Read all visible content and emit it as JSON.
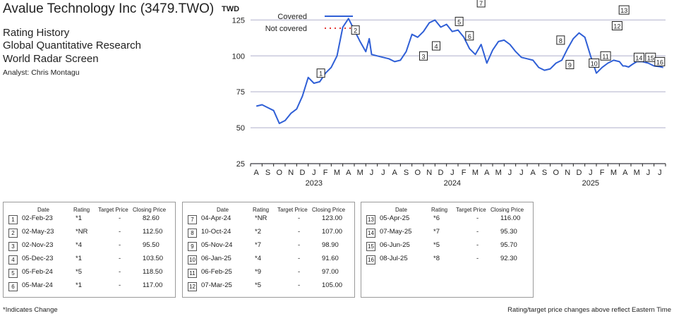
{
  "header": {
    "company": "Avalue Technology Inc (3479.TWO)",
    "line1": "Rating History",
    "line2": "Global Quantitative Research",
    "line3": "World Radar Screen",
    "analyst": "Analyst: Chris Montagu"
  },
  "colors": {
    "covered": "#2f5fd6",
    "not_covered": "#e53935",
    "grid": "#c9c9dc",
    "axis": "#222222"
  },
  "chart_data": {
    "type": "line",
    "ylabel": "TWD",
    "ylim": [
      25,
      135
    ],
    "yticks": [
      25,
      50,
      75,
      100,
      125
    ],
    "grid": "horizontal",
    "legend": {
      "placement": "top",
      "entries": [
        "Covered",
        "Not covered"
      ]
    },
    "months": [
      "A",
      "S",
      "O",
      "N",
      "D",
      "J",
      "F",
      "M",
      "A",
      "M",
      "J",
      "J",
      "A",
      "S",
      "O",
      "N",
      "D",
      "J",
      "F",
      "M",
      "A",
      "M",
      "J",
      "J",
      "A",
      "S",
      "O",
      "N",
      "D",
      "J",
      "F",
      "M",
      "A",
      "M",
      "J",
      "J"
    ],
    "years": [
      {
        "label": "2023",
        "month_index": 5
      },
      {
        "label": "2024",
        "month_index": 17
      },
      {
        "label": "2025",
        "month_index": 29
      }
    ],
    "series": [
      {
        "name": "Covered",
        "x": [
          0,
          0.5,
          1,
          1.5,
          2,
          2.5,
          3,
          3.5,
          4,
          4.5,
          5,
          5.5,
          6,
          6.5,
          7,
          7.5,
          8,
          8.5,
          9,
          9.5,
          9.8,
          10,
          10.5,
          11,
          11.5,
          12,
          12.5,
          13,
          13.5,
          14,
          14.5,
          15,
          15.5,
          16,
          16.5,
          17,
          17.5,
          18,
          18.5,
          19,
          19.5,
          20,
          20.5,
          21,
          21.5,
          22,
          22.5,
          23,
          23.5,
          24,
          24.5,
          25,
          25.5,
          26,
          26.5,
          27,
          27.5,
          28,
          28.5,
          29,
          29.5,
          30,
          30.5,
          31,
          31.5,
          31.8,
          32,
          32.3,
          32.6,
          33,
          33.5,
          34,
          34.5,
          35,
          35.3
        ],
        "y": [
          65,
          66,
          64,
          62,
          53,
          55,
          60,
          63,
          72,
          85,
          81,
          82,
          88,
          92,
          100,
          120,
          126,
          118,
          110,
          103,
          112,
          101,
          100,
          99,
          98,
          96,
          97,
          103,
          115,
          113,
          117,
          123,
          125,
          120,
          122,
          117,
          118,
          113,
          105,
          101,
          108,
          95,
          104,
          110,
          111,
          108,
          103,
          99,
          98,
          97,
          92,
          90,
          91,
          95,
          97,
          105,
          112,
          116,
          113,
          100,
          88,
          92,
          95,
          97,
          96,
          93,
          93,
          92.3,
          94,
          96,
          96,
          95,
          93,
          92.5,
          92
        ]
      }
    ],
    "markers": [
      {
        "id": "1",
        "date": "02-Feb-23",
        "rating": "*1",
        "target_price": "-",
        "closing_price": "82.60",
        "x": 5.6,
        "y": 88
      },
      {
        "id": "2",
        "date": "02-May-23",
        "rating": "*NR",
        "target_price": "-",
        "closing_price": "112.50",
        "x": 8.6,
        "y": 118
      },
      {
        "id": "3",
        "date": "02-Nov-23",
        "rating": "*4",
        "target_price": "-",
        "closing_price": "95.50",
        "x": 14.5,
        "y": 100
      },
      {
        "id": "4",
        "date": "05-Dec-23",
        "rating": "*1",
        "target_price": "-",
        "closing_price": "103.50",
        "x": 15.6,
        "y": 107
      },
      {
        "id": "5",
        "date": "05-Feb-24",
        "rating": "*5",
        "target_price": "-",
        "closing_price": "118.50",
        "x": 17.6,
        "y": 124
      },
      {
        "id": "6",
        "date": "05-Mar-24",
        "rating": "*1",
        "target_price": "-",
        "closing_price": "117.00",
        "x": 18.5,
        "y": 114
      },
      {
        "id": "7",
        "date": "04-Apr-24",
        "rating": "*NR",
        "target_price": "-",
        "closing_price": "123.00",
        "x": 19.5,
        "y": 137
      },
      {
        "id": "8",
        "date": "10-Oct-24",
        "rating": "*2",
        "target_price": "-",
        "closing_price": "107.00",
        "x": 26.4,
        "y": 111
      },
      {
        "id": "9",
        "date": "05-Nov-24",
        "rating": "*7",
        "target_price": "-",
        "closing_price": "98.90",
        "x": 27.2,
        "y": 94
      },
      {
        "id": "10",
        "date": "06-Jan-25",
        "rating": "*4",
        "target_price": "-",
        "closing_price": "91.60",
        "x": 29.3,
        "y": 95
      },
      {
        "id": "11",
        "date": "06-Feb-25",
        "rating": "*9",
        "target_price": "-",
        "closing_price": "97.00",
        "x": 30.3,
        "y": 100
      },
      {
        "id": "12",
        "date": "07-Mar-25",
        "rating": "*5",
        "target_price": "-",
        "closing_price": "105.00",
        "x": 31.3,
        "y": 121
      },
      {
        "id": "13",
        "date": "05-Apr-25",
        "rating": "*6",
        "target_price": "-",
        "closing_price": "116.00",
        "x": 31.9,
        "y": 132
      },
      {
        "id": "14",
        "date": "07-May-25",
        "rating": "*7",
        "target_price": "-",
        "closing_price": "95.30",
        "x": 33.2,
        "y": 99
      },
      {
        "id": "15",
        "date": "06-Jun-25",
        "rating": "*5",
        "target_price": "-",
        "closing_price": "95.70",
        "x": 34.2,
        "y": 99
      },
      {
        "id": "16",
        "date": "08-Jul-25",
        "rating": "*8",
        "target_price": "-",
        "closing_price": "92.30",
        "x": 35.0,
        "y": 96
      }
    ]
  },
  "table": {
    "headers": {
      "date": "Date",
      "rating": "Rating",
      "target": "Target Price",
      "closing": "Closing Price"
    }
  },
  "footnotes": {
    "left": "*Indicates Change",
    "right": "Rating/target price changes above reflect Eastern Time"
  }
}
